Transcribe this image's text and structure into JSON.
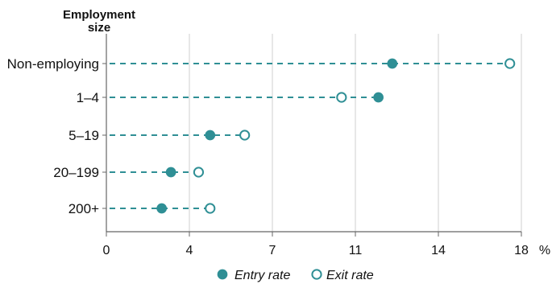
{
  "chart_data": {
    "type": "scatter",
    "y_axis_title": [
      "Employment",
      "size"
    ],
    "categories": [
      "Non-employing",
      "1–4",
      "5–19",
      "20–199",
      "200+"
    ],
    "x_ticks": [
      {
        "value": 0,
        "label": "0"
      },
      {
        "value": 3.6,
        "label": "4"
      },
      {
        "value": 7.2,
        "label": "7"
      },
      {
        "value": 10.8,
        "label": "11"
      },
      {
        "value": 14.4,
        "label": "14"
      },
      {
        "value": 18,
        "label": "18"
      }
    ],
    "x_unit": "%",
    "xlim": [
      0,
      18
    ],
    "grid": "vertical",
    "legend_position": "bottom",
    "series": [
      {
        "name": "Entry rate",
        "marker": "filled-circle",
        "color": "#2f8f95",
        "values": [
          12.4,
          11.8,
          4.5,
          2.8,
          2.4
        ]
      },
      {
        "name": "Exit rate",
        "marker": "open-circle",
        "color": "#2f8f95",
        "values": [
          17.5,
          10.2,
          6.0,
          4.0,
          4.5
        ]
      }
    ],
    "colors": {
      "accent": "#2f8f95",
      "grid": "#cfcfcf",
      "axis": "#666666",
      "text": "#111111"
    }
  }
}
